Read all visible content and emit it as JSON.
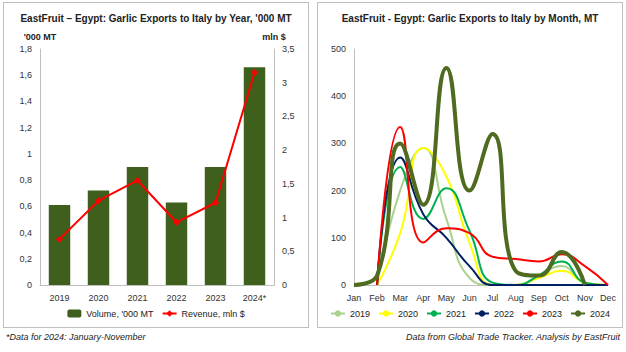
{
  "chart_data": [
    {
      "type": "bar",
      "title": "EastFruit – Egypt: Garlic Exports to Italy by Year, '000 MT",
      "y_label": "'000 MT",
      "y2_label": "mln $",
      "annotation": "*Data for 2024: January-November",
      "categories": [
        "2019",
        "2020",
        "2021",
        "2022",
        "2023",
        "2024*"
      ],
      "series": [
        {
          "name": "Volume, '000 MT",
          "type": "bar",
          "color": "#3f5f1c",
          "values": [
            0.61,
            0.72,
            0.9,
            0.63,
            0.9,
            1.66
          ]
        },
        {
          "name": "Revenue, mln $",
          "type": "line",
          "color": "#ff0000",
          "marker": "diamond",
          "line_style": "solid",
          "axis": "y2",
          "values": [
            0.68,
            1.25,
            1.55,
            0.93,
            1.22,
            3.15
          ]
        }
      ],
      "ylim": [
        0,
        1.8
      ],
      "yticks": [
        0,
        {
          "value": 0.2,
          "label": "0,2"
        },
        {
          "value": 0.4,
          "label": "0,4"
        },
        {
          "value": 0.6,
          "label": "0,6"
        },
        {
          "value": 0.8,
          "label": "0,8"
        },
        1,
        {
          "value": 1.2,
          "label": "1,2"
        },
        {
          "value": 1.4,
          "label": "1,4"
        },
        {
          "value": 1.6,
          "label": "1,6"
        },
        {
          "value": 1.8,
          "label": "1,8"
        }
      ],
      "y2lim": [
        0,
        3.5
      ],
      "y2ticks": [
        0,
        {
          "value": 0.5,
          "label": "0,5"
        },
        1,
        {
          "value": 1.5,
          "label": "1,5"
        },
        2,
        {
          "value": 2.5,
          "label": "2,5"
        },
        3,
        {
          "value": 3.5,
          "label": "3,5"
        }
      ],
      "grid": false,
      "legend": "bottom"
    },
    {
      "type": "line",
      "title": "EastFruit - Egypt: Garlic Exports to Italy by Month, MT",
      "annotation": "Data from Global Trade Tracker. Analysis by EastFruit",
      "categories": [
        "Jan",
        "Feb",
        "Mar",
        "Apr",
        "May",
        "Jun",
        "Jul",
        "Aug",
        "Sep",
        "Oct",
        "Nov",
        "Dec"
      ],
      "series": [
        {
          "name": "2019",
          "color": "#a9d18e",
          "line_style": "smooth",
          "values": [
            null,
            0,
            200,
            290,
            140,
            15,
            0,
            0,
            20,
            40,
            5,
            0
          ]
        },
        {
          "name": "2020",
          "color": "#ffff00",
          "line_style": "smooth",
          "values": [
            null,
            0,
            110,
            290,
            230,
            90,
            0,
            0,
            15,
            30,
            5,
            0
          ]
        },
        {
          "name": "2021",
          "color": "#00b050",
          "line_style": "smooth",
          "values": [
            null,
            0,
            250,
            140,
            205,
            115,
            5,
            0,
            20,
            50,
            5,
            0
          ]
        },
        {
          "name": "2022",
          "color": "#002060",
          "line_style": "smooth",
          "values": [
            null,
            0,
            270,
            150,
            100,
            40,
            0,
            0,
            0,
            0,
            0,
            0
          ]
        },
        {
          "name": "2023",
          "color": "#ff0000",
          "line_style": "smooth",
          "values": [
            null,
            0,
            335,
            90,
            120,
            110,
            60,
            55,
            50,
            65,
            40,
            0
          ]
        },
        {
          "name": "2024",
          "color": "#4e6b20",
          "line_style": "smooth",
          "values": [
            0,
            20,
            300,
            170,
            460,
            200,
            320,
            30,
            20,
            70,
            0,
            null
          ]
        }
      ],
      "ylim": [
        0,
        500
      ],
      "yticks": [
        0,
        100,
        200,
        300,
        400,
        500
      ],
      "grid": false,
      "legend": "bottom"
    }
  ]
}
